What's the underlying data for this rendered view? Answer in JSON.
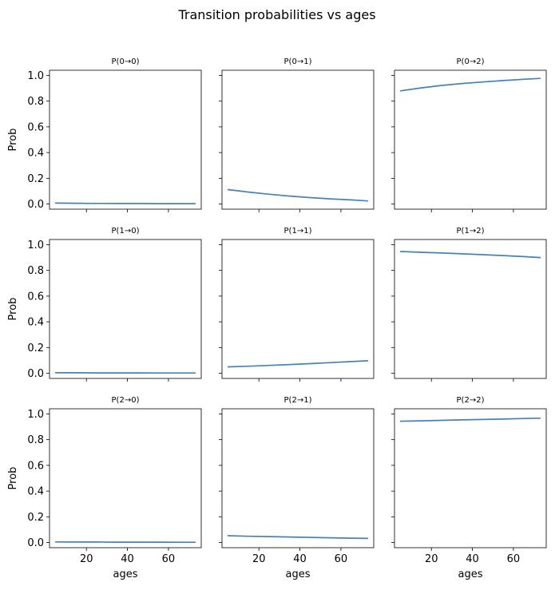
{
  "chart_data": {
    "type": "line",
    "title": "Transition probabilities vs ages",
    "xlabel": "ages",
    "ylabel": "Prob",
    "xlim": [
      2,
      76
    ],
    "ylim": [
      -0.04,
      1.04
    ],
    "x_ticks": [
      "20",
      "40",
      "60"
    ],
    "y_ticks": [
      "0.0",
      "0.2",
      "0.4",
      "0.6",
      "0.8",
      "1.0"
    ],
    "line_color": "#4682b4",
    "x": [
      5,
      15,
      25,
      35,
      45,
      55,
      65,
      73
    ],
    "panels": [
      {
        "title": "P(0→0)",
        "values": [
          0.007,
          0.006,
          0.005,
          0.004,
          0.004,
          0.003,
          0.003,
          0.003
        ]
      },
      {
        "title": "P(0→1)",
        "values": [
          0.112,
          0.093,
          0.076,
          0.062,
          0.05,
          0.04,
          0.032,
          0.024
        ]
      },
      {
        "title": "P(0→2)",
        "values": [
          0.88,
          0.903,
          0.922,
          0.937,
          0.949,
          0.96,
          0.97,
          0.977
        ]
      },
      {
        "title": "P(1→0)",
        "values": [
          0.004,
          0.004,
          0.003,
          0.003,
          0.003,
          0.002,
          0.002,
          0.002
        ]
      },
      {
        "title": "P(1→1)",
        "values": [
          0.05,
          0.055,
          0.061,
          0.068,
          0.075,
          0.083,
          0.091,
          0.097
        ]
      },
      {
        "title": "P(1→2)",
        "values": [
          0.947,
          0.941,
          0.935,
          0.929,
          0.922,
          0.915,
          0.907,
          0.9
        ]
      },
      {
        "title": "P(2→0)",
        "values": [
          0.005,
          0.004,
          0.004,
          0.003,
          0.003,
          0.003,
          0.002,
          0.002
        ]
      },
      {
        "title": "P(2→1)",
        "values": [
          0.053,
          0.049,
          0.046,
          0.043,
          0.04,
          0.037,
          0.034,
          0.032
        ]
      },
      {
        "title": "P(2→2)",
        "values": [
          0.943,
          0.946,
          0.95,
          0.954,
          0.957,
          0.96,
          0.964,
          0.967
        ]
      }
    ]
  }
}
